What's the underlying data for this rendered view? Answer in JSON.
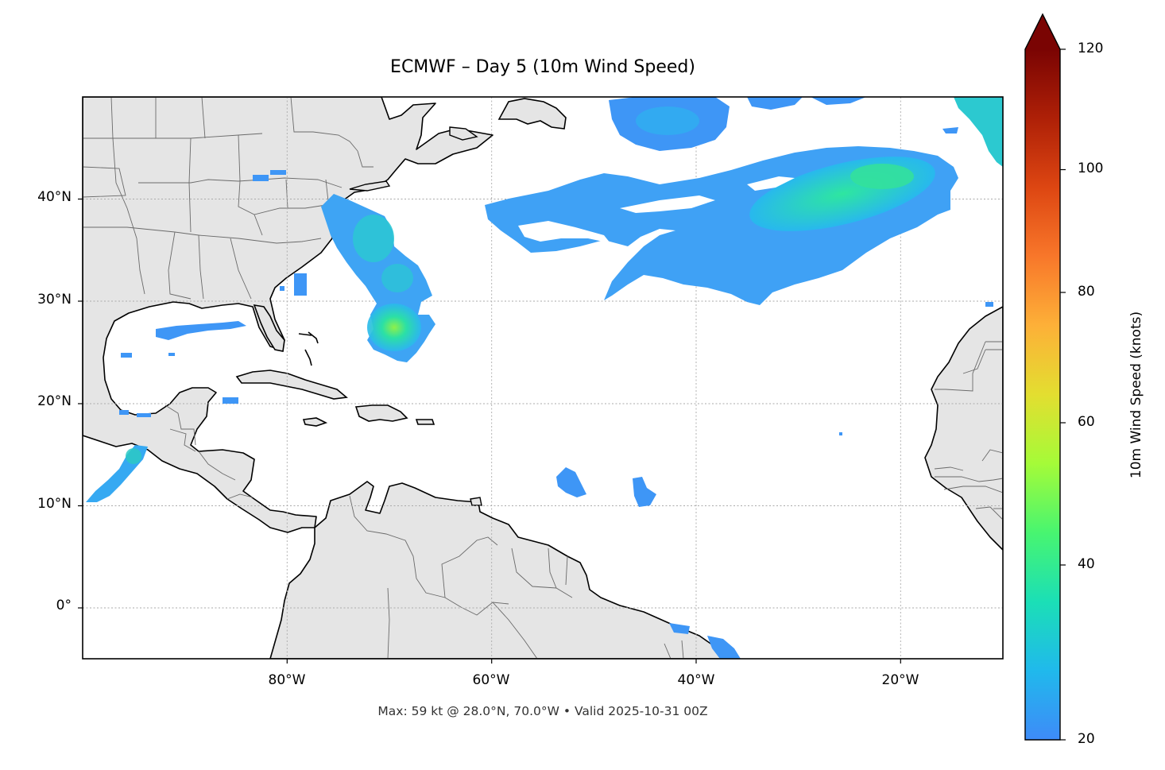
{
  "title": "ECMWF – Day 5 (10m Wind Speed)",
  "caption": "Max: 59 kt @ 28.0°N, 70.0°W • Valid 2025-10-31 00Z",
  "map": {
    "extent": {
      "lon_min": -100,
      "lon_max": -10,
      "lat_min": -5,
      "lat_max": 50
    },
    "land_color": "#e5e5e5",
    "ocean_color": "#ffffff",
    "coastline_color": "#000000",
    "border_color": "#666666",
    "gridlines": "dotted",
    "lat_ticks": [
      "40°N",
      "30°N",
      "20°N",
      "10°N",
      "0°"
    ],
    "lon_ticks": [
      "80°W",
      "60°W",
      "40°W",
      "20°W"
    ]
  },
  "colorbar": {
    "label": "10m Wind Speed (knots)",
    "ticks": [
      "120",
      "100",
      "80",
      "60",
      "40",
      "20"
    ],
    "min": 20,
    "max": 120,
    "extend": "max",
    "colormap": "turbo"
  },
  "wind_field": {
    "max_kt": 59,
    "max_lat": 28.0,
    "max_lon": -70.0
  }
}
